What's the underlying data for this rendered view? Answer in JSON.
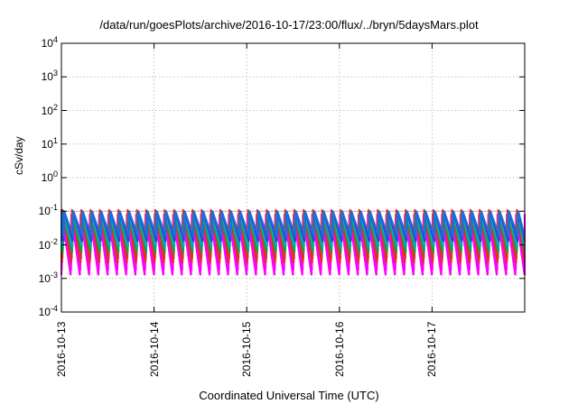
{
  "chart_data": {
    "type": "line",
    "title": "/data/run/goesPlots/archive/2016-10-17/23:00/flux/../bryn/5daysMars.plot",
    "xlabel": "Coordinated Universal Time (UTC)",
    "ylabel": "cSv/day",
    "yscale": "log",
    "ylim": [
      0.0001,
      10000
    ],
    "y_ticks": [
      {
        "base": "10",
        "exp": "4"
      },
      {
        "base": "10",
        "exp": "3"
      },
      {
        "base": "10",
        "exp": "2"
      },
      {
        "base": "10",
        "exp": "1"
      },
      {
        "base": "10",
        "exp": "0"
      },
      {
        "base": "10",
        "exp": "-1"
      },
      {
        "base": "10",
        "exp": "-2"
      },
      {
        "base": "10",
        "exp": "-3"
      },
      {
        "base": "10",
        "exp": "-4"
      }
    ],
    "x_ticks": [
      "2016-10-13",
      "2016-10-14",
      "2016-10-15",
      "2016-10-16",
      "2016-10-17"
    ],
    "xlim": [
      "2016-10-13",
      "2016-10-18"
    ],
    "grid": true,
    "cycle_period_hours": 2.4,
    "series": [
      {
        "color": "#ff00ff",
        "peak": 0.08,
        "trough": 0.0013
      },
      {
        "color": "#ff00ff",
        "peak": 0.075,
        "trough": 0.0018
      },
      {
        "color": "#e0302a",
        "peak": 0.11,
        "trough": 0.003
      },
      {
        "color": "#e0302a",
        "peak": 0.1,
        "trough": 0.004
      },
      {
        "color": "#1f9a4a",
        "peak": 0.09,
        "trough": 0.006
      },
      {
        "color": "#00b0b0",
        "peak": 0.085,
        "trough": 0.009
      },
      {
        "color": "#3a40d0",
        "peak": 0.1,
        "trough": 0.013
      },
      {
        "color": "#1e6fd9",
        "peak": 0.095,
        "trough": 0.018
      }
    ],
    "reference_line": {
      "value": 0.1,
      "color": "#e8a0a0"
    }
  }
}
